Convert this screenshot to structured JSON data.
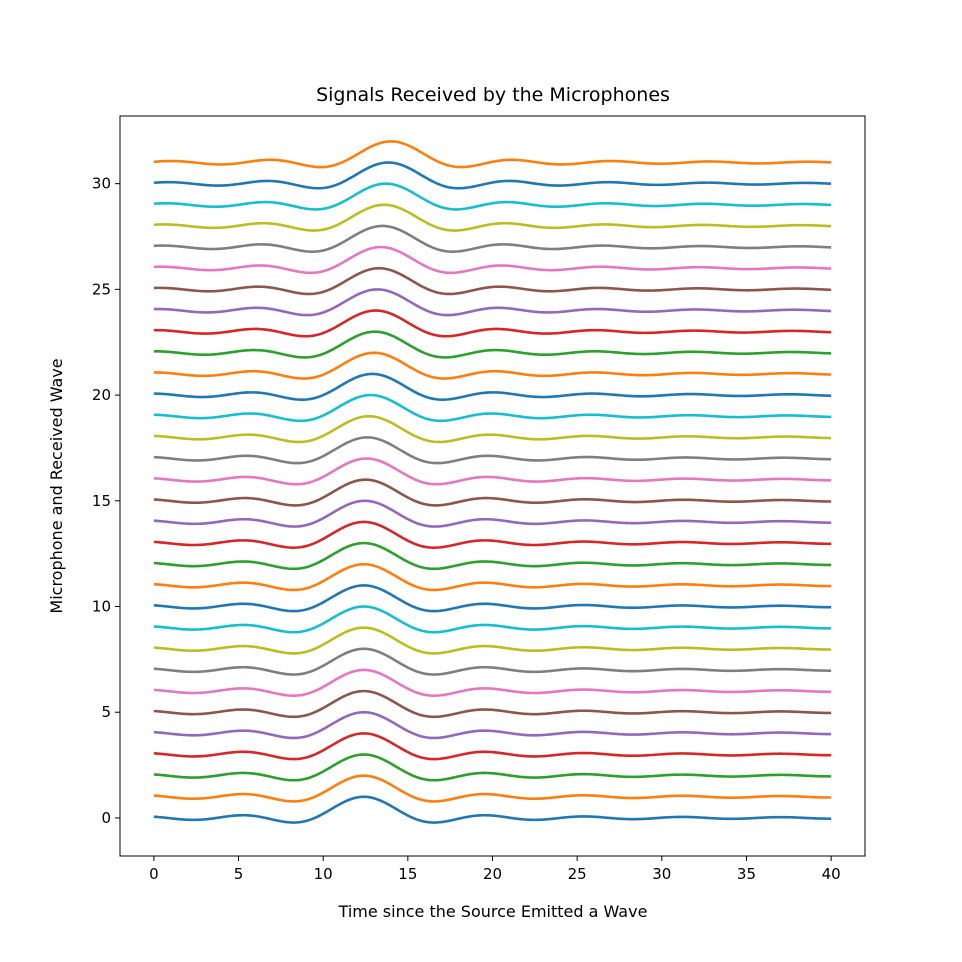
{
  "chart_data": {
    "type": "line",
    "title": "Signals Received by the Microphones",
    "xlabel": "Time since the Source Emitted a Wave",
    "ylabel": "Microphone and Received Wave",
    "xlim": [
      -2,
      42
    ],
    "ylim": [
      -1.8,
      33.2
    ],
    "xticks": [
      0,
      5,
      10,
      15,
      20,
      25,
      30,
      35,
      40
    ],
    "xtick_labels": [
      "0",
      "5",
      "10",
      "15",
      "20",
      "25",
      "30",
      "35",
      "40"
    ],
    "yticks": [
      0,
      5,
      10,
      15,
      20,
      25,
      30
    ],
    "ytick_labels": [
      "0",
      "5",
      "10",
      "15",
      "20",
      "25",
      "30"
    ],
    "grid": false,
    "legend": "none",
    "x_range": [
      0,
      40
    ],
    "waveform": "sinc",
    "waveform_half_period": 2.9,
    "series": [
      {
        "offset": 0,
        "peak_time": 12.4,
        "color": "#1f77b4"
      },
      {
        "offset": 1,
        "peak_time": 12.4,
        "color": "#ff7f0e"
      },
      {
        "offset": 2,
        "peak_time": 12.4,
        "color": "#2ca02c"
      },
      {
        "offset": 3,
        "peak_time": 12.4,
        "color": "#d62728"
      },
      {
        "offset": 4,
        "peak_time": 12.4,
        "color": "#9467bd"
      },
      {
        "offset": 5,
        "peak_time": 12.4,
        "color": "#8c564b"
      },
      {
        "offset": 6,
        "peak_time": 12.4,
        "color": "#e377c2"
      },
      {
        "offset": 7,
        "peak_time": 12.4,
        "color": "#7f7f7f"
      },
      {
        "offset": 8,
        "peak_time": 12.4,
        "color": "#bcbd22"
      },
      {
        "offset": 9,
        "peak_time": 12.4,
        "color": "#17becf"
      },
      {
        "offset": 10,
        "peak_time": 12.4,
        "color": "#1f77b4"
      },
      {
        "offset": 11,
        "peak_time": 12.4,
        "color": "#ff7f0e"
      },
      {
        "offset": 12,
        "peak_time": 12.4,
        "color": "#2ca02c"
      },
      {
        "offset": 13,
        "peak_time": 12.4,
        "color": "#d62728"
      },
      {
        "offset": 14,
        "peak_time": 12.45,
        "color": "#9467bd"
      },
      {
        "offset": 15,
        "peak_time": 12.5,
        "color": "#8c564b"
      },
      {
        "offset": 16,
        "peak_time": 12.55,
        "color": "#e377c2"
      },
      {
        "offset": 17,
        "peak_time": 12.6,
        "color": "#7f7f7f"
      },
      {
        "offset": 18,
        "peak_time": 12.7,
        "color": "#bcbd22"
      },
      {
        "offset": 19,
        "peak_time": 12.8,
        "color": "#17becf"
      },
      {
        "offset": 20,
        "peak_time": 12.9,
        "color": "#1f77b4"
      },
      {
        "offset": 21,
        "peak_time": 13.0,
        "color": "#ff7f0e"
      },
      {
        "offset": 22,
        "peak_time": 13.05,
        "color": "#2ca02c"
      },
      {
        "offset": 23,
        "peak_time": 13.1,
        "color": "#d62728"
      },
      {
        "offset": 24,
        "peak_time": 13.2,
        "color": "#9467bd"
      },
      {
        "offset": 25,
        "peak_time": 13.3,
        "color": "#8c564b"
      },
      {
        "offset": 26,
        "peak_time": 13.4,
        "color": "#e377c2"
      },
      {
        "offset": 27,
        "peak_time": 13.5,
        "color": "#7f7f7f"
      },
      {
        "offset": 28,
        "peak_time": 13.6,
        "color": "#bcbd22"
      },
      {
        "offset": 29,
        "peak_time": 13.7,
        "color": "#17becf"
      },
      {
        "offset": 30,
        "peak_time": 13.85,
        "color": "#1f77b4"
      },
      {
        "offset": 31,
        "peak_time": 14.0,
        "color": "#ff7f0e"
      }
    ]
  }
}
